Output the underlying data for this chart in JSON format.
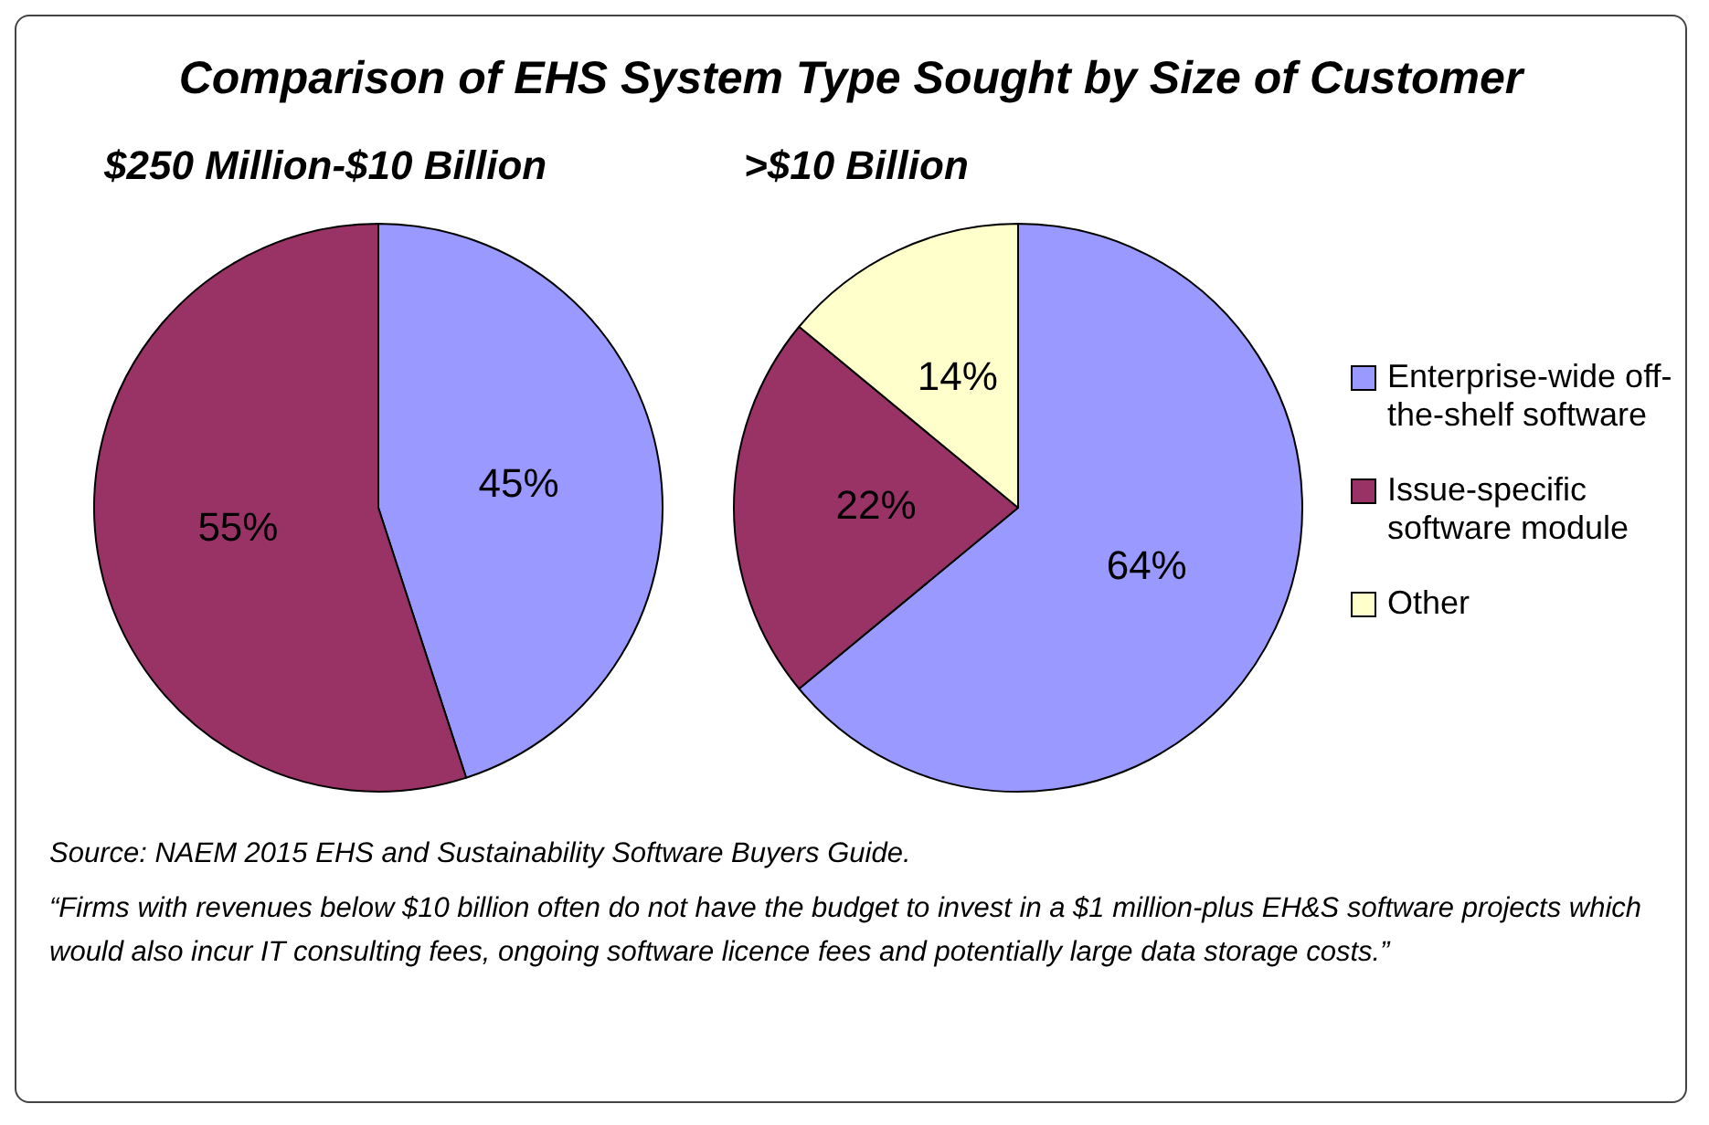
{
  "chart_data": [
    {
      "type": "pie",
      "title": "Comparison of EHS System Type Sought by Size of Customer",
      "subtitle": "$250 Million-$10 Billion",
      "categories": [
        null,
        null
      ],
      "values": [
        45,
        55
      ],
      "value_labels": [
        "45%",
        "55%"
      ],
      "colors": [
        "#9999ff",
        "#993366"
      ],
      "legend": false,
      "annotations": [
        "Source: NAEM 2015 EHS and Sustainability Software Buyers Guide.",
        "“Firms with revenues below $10 billion often do not have the budget to invest in a $1 million-plus EH&S software projects which would also incur IT consulting fees, ongoing software licence fees and potentially large data storage costs.”"
      ]
    },
    {
      "type": "pie",
      "subtitle": ">$10 Billion",
      "categories": [
        "Enterprise-wide off-the-shelf software",
        "Issue-specific software module",
        "Other"
      ],
      "values": [
        64,
        22,
        14
      ],
      "value_labels": [
        "64%",
        "22%",
        "14%"
      ],
      "colors": [
        "#9999ff",
        "#993366",
        "#ffffcc"
      ],
      "legend": "right"
    }
  ]
}
